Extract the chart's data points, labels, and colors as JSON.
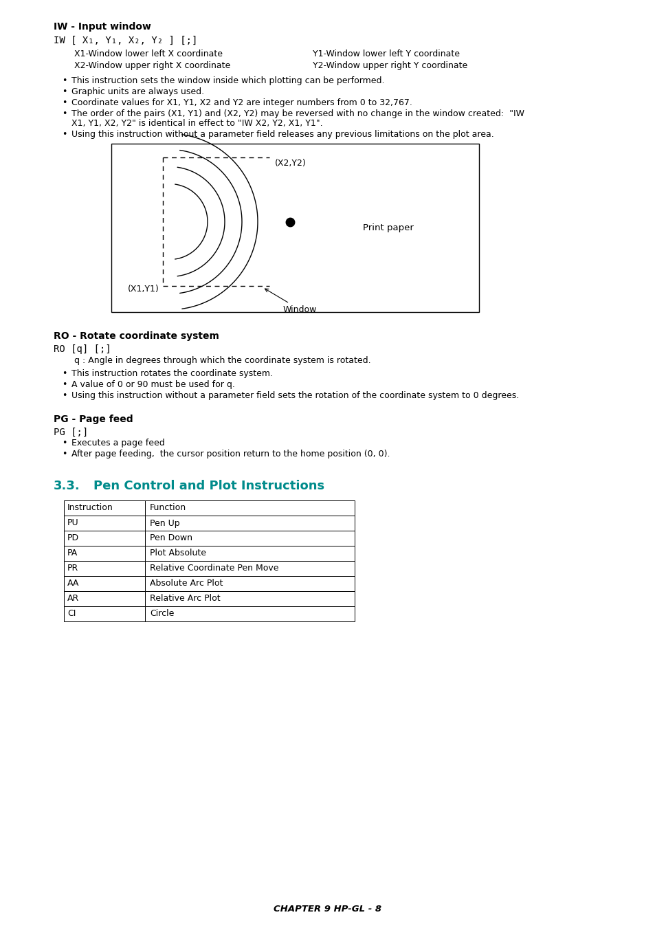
{
  "bg_color": "#ffffff",
  "text_color": "#000000",
  "teal_color": "#008B8B",
  "title_iw": "IW - Input window",
  "code_iw": "IW [ X₁, Y₁, X₂, Y₂ ] [;]",
  "iw_params": [
    [
      "X1-Window lower left X coordinate",
      "Y1-Window lower left Y coordinate"
    ],
    [
      "X2-Window upper right X coordinate",
      "Y2-Window upper right Y coordinate"
    ]
  ],
  "iw_bullets": [
    "This instruction sets the window inside which plotting can be performed.",
    "Graphic units are always used.",
    "Coordinate values for X1, Y1, X2 and Y2 are integer numbers from 0 to 32,767.",
    "The order of the pairs (X1, Y1) and (X2, Y2) may be reversed with no change in the window created:  \"IW X1, Y1, X2, Y2\" is identical in effect to \"IW X2, Y2, X1, Y1\".",
    "Using this instruction without a parameter field releases any previous limitations on the plot area."
  ],
  "title_ro": "RO - Rotate coordinate system",
  "code_ro": "RO [q] [;]",
  "ro_param": "q : Angle in degrees through which the coordinate system is rotated.",
  "ro_bullets": [
    "This instruction rotates the coordinate system.",
    "A value of 0 or 90 must be used for q.",
    "Using this instruction without a parameter field sets the rotation of the coordinate system to 0 degrees."
  ],
  "title_pg": "PG - Page feed",
  "code_pg": "PG [;]",
  "pg_bullets": [
    "Executes a page feed",
    "After page feeding,  the cursor position return to the home position (0, 0)."
  ],
  "section_num": "3.3.",
  "section_name": "Pen Control and Plot Instructions",
  "table_headers": [
    "Instruction",
    "Function"
  ],
  "table_rows": [
    [
      "PU",
      "Pen Up"
    ],
    [
      "PD",
      "Pen Down"
    ],
    [
      "PA",
      "Plot Absolute"
    ],
    [
      "PR",
      "Relative Coordinate Pen Move"
    ],
    [
      "AA",
      "Absolute Arc Plot"
    ],
    [
      "AR",
      "Relative Arc Plot"
    ],
    [
      "CI",
      "Circle"
    ]
  ],
  "footer": "CHAPTER 9 HP-GL - 8"
}
